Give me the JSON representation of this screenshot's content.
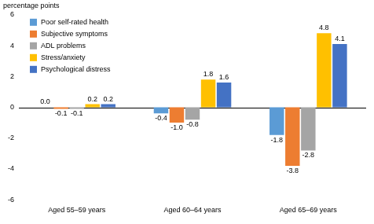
{
  "chart_data": {
    "type": "bar",
    "y_label": "percentage points",
    "categories": [
      "Aged 55–59 years",
      "Aged 60–64 years",
      "Aged 65–69 years"
    ],
    "series": [
      {
        "name": "Poor self-rated health",
        "color": "#5b9bd5",
        "values": [
          0.0,
          -0.4,
          -1.8
        ],
        "value_labels": [
          "0.0",
          "-0.4",
          "-1.8"
        ]
      },
      {
        "name": "Subjective symptoms",
        "color": "#ed7d31",
        "values": [
          -0.1,
          -1.0,
          -3.8
        ],
        "value_labels": [
          "-0.1",
          "-1.0",
          "-3.8"
        ]
      },
      {
        "name": "ADL problems",
        "color": "#a5a5a5",
        "values": [
          -0.1,
          -0.8,
          -2.8
        ],
        "value_labels": [
          "-0.1",
          "-0.8",
          "-2.8"
        ]
      },
      {
        "name": "Stress/anxiety",
        "color": "#ffc000",
        "values": [
          0.2,
          1.8,
          4.8
        ],
        "value_labels": [
          "0.2",
          "1.8",
          "4.8"
        ]
      },
      {
        "name": "Psychological distress",
        "color": "#4472c4",
        "values": [
          0.2,
          1.6,
          4.1
        ],
        "value_labels": [
          "0.2",
          "1.6",
          "4.1"
        ]
      }
    ],
    "ylim": [
      -6,
      6
    ],
    "yticks": [
      -6,
      -4,
      -2,
      0,
      2,
      4,
      6
    ],
    "grid": false,
    "legend": "upper left",
    "data_labels": true
  }
}
